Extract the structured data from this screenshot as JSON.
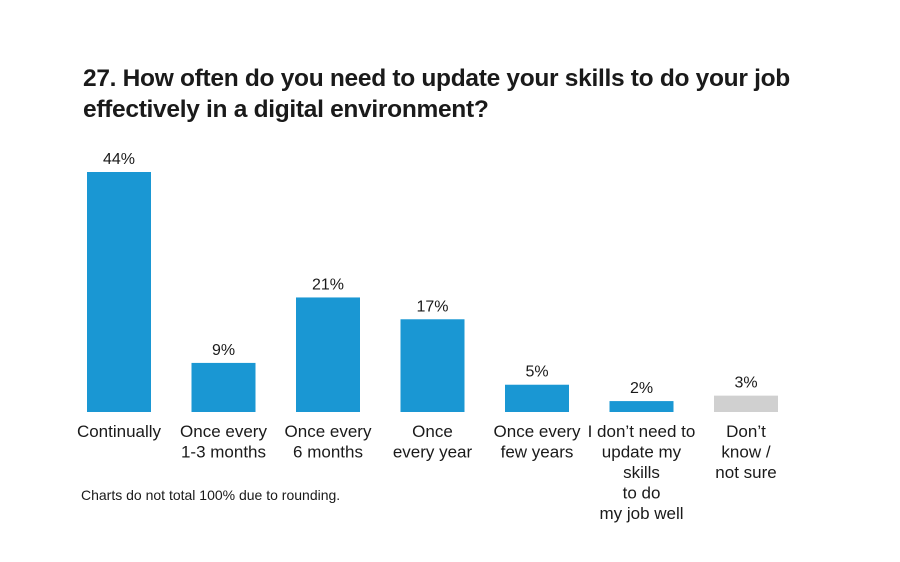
{
  "title_line1": "27. How often do you need to update your skills to do your job",
  "title_line2": "effectively in a digital environment?",
  "footnote": "Charts do not total 100% due to rounding.",
  "colors": {
    "primary": "#1a97d3",
    "neutral": "#d0d0d0",
    "text": "#1a1a1a"
  },
  "chart_data": {
    "type": "bar",
    "title": "27. How often do you need to update your skills to do your job effectively in a digital environment?",
    "categories": [
      [
        "Continually"
      ],
      [
        "Once every",
        "1-3 months"
      ],
      [
        "Once every",
        "6 months"
      ],
      [
        "Once",
        "every year"
      ],
      [
        "Once every",
        "few years"
      ],
      [
        "I don’t need to",
        "update my",
        "skills",
        "to do",
        "my job well"
      ],
      [
        "Don’t",
        "know /",
        "not sure"
      ]
    ],
    "values": [
      44,
      9,
      21,
      17,
      5,
      2,
      3
    ],
    "value_labels": [
      "44%",
      "9%",
      "21%",
      "17%",
      "5%",
      "2%",
      "3%"
    ],
    "bar_colors": [
      "#1a97d3",
      "#1a97d3",
      "#1a97d3",
      "#1a97d3",
      "#1a97d3",
      "#1a97d3",
      "#d0d0d0"
    ],
    "xlabel": "",
    "ylabel": "",
    "ylim": [
      0,
      44
    ],
    "grid": false,
    "legend": "none"
  }
}
